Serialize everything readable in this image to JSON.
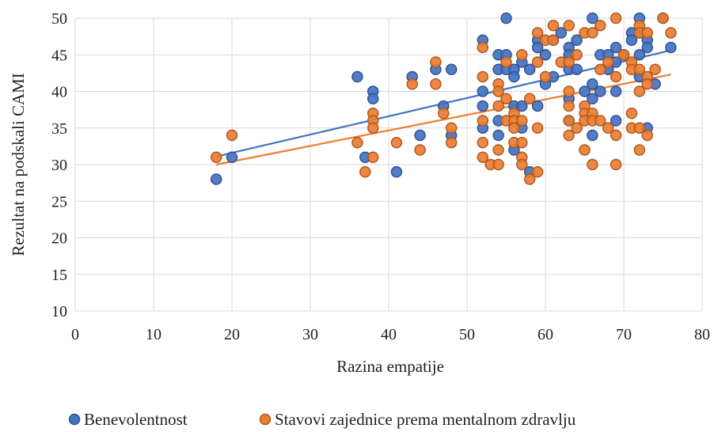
{
  "chart_data": {
    "type": "scatter",
    "xlabel": "Razina empatije",
    "ylabel": "Rezultat na podskali CAMI",
    "xlim": [
      0,
      80
    ],
    "ylim": [
      10,
      50
    ],
    "xticks": [
      0,
      10,
      20,
      30,
      40,
      50,
      60,
      70,
      80
    ],
    "yticks": [
      10,
      15,
      20,
      25,
      30,
      35,
      40,
      45,
      50
    ],
    "grid": true,
    "legend_position": "bottom",
    "series": [
      {
        "name": "Benevolentnost",
        "color": "#4472C4",
        "points": [
          [
            18,
            28
          ],
          [
            20,
            31
          ],
          [
            36,
            42
          ],
          [
            37,
            31
          ],
          [
            38,
            40
          ],
          [
            38,
            39
          ],
          [
            41,
            29
          ],
          [
            43,
            42
          ],
          [
            44,
            34
          ],
          [
            46,
            43
          ],
          [
            47,
            38
          ],
          [
            48,
            43
          ],
          [
            48,
            34
          ],
          [
            52,
            47
          ],
          [
            52,
            40
          ],
          [
            52,
            38
          ],
          [
            52,
            35
          ],
          [
            54,
            45
          ],
          [
            54,
            43
          ],
          [
            54,
            36
          ],
          [
            54,
            34
          ],
          [
            55,
            50
          ],
          [
            55,
            45
          ],
          [
            55,
            43
          ],
          [
            56,
            43
          ],
          [
            56,
            42
          ],
          [
            56,
            38
          ],
          [
            56,
            32
          ],
          [
            57,
            44
          ],
          [
            57,
            38
          ],
          [
            57,
            35
          ],
          [
            58,
            43
          ],
          [
            58,
            29
          ],
          [
            59,
            47
          ],
          [
            59,
            46
          ],
          [
            59,
            38
          ],
          [
            60,
            45
          ],
          [
            60,
            41
          ],
          [
            61,
            47
          ],
          [
            61,
            42
          ],
          [
            62,
            48
          ],
          [
            63,
            46
          ],
          [
            63,
            45
          ],
          [
            63,
            43
          ],
          [
            63,
            39
          ],
          [
            63,
            36
          ],
          [
            64,
            47
          ],
          [
            64,
            43
          ],
          [
            65,
            40
          ],
          [
            66,
            50
          ],
          [
            66,
            41
          ],
          [
            66,
            39
          ],
          [
            66,
            34
          ],
          [
            67,
            45
          ],
          [
            67,
            40
          ],
          [
            68,
            45
          ],
          [
            68,
            43
          ],
          [
            69,
            46
          ],
          [
            69,
            44
          ],
          [
            69,
            40
          ],
          [
            69,
            36
          ],
          [
            70,
            45
          ],
          [
            71,
            48
          ],
          [
            71,
            47
          ],
          [
            72,
            50
          ],
          [
            72,
            48
          ],
          [
            72,
            45
          ],
          [
            72,
            42
          ],
          [
            73,
            47
          ],
          [
            73,
            46
          ],
          [
            73,
            35
          ],
          [
            74,
            41
          ],
          [
            75,
            50
          ],
          [
            76,
            46
          ]
        ]
      },
      {
        "name": "Stavovi zajednice prema mentalnom zdravlju",
        "color": "#ED7D31",
        "points": [
          [
            18,
            31
          ],
          [
            20,
            34
          ],
          [
            36,
            33
          ],
          [
            37,
            29
          ],
          [
            38,
            37
          ],
          [
            38,
            36
          ],
          [
            38,
            35
          ],
          [
            38,
            31
          ],
          [
            41,
            33
          ],
          [
            43,
            41
          ],
          [
            44,
            32
          ],
          [
            46,
            44
          ],
          [
            46,
            41
          ],
          [
            47,
            37
          ],
          [
            48,
            35
          ],
          [
            48,
            33
          ],
          [
            52,
            46
          ],
          [
            52,
            42
          ],
          [
            52,
            36
          ],
          [
            52,
            33
          ],
          [
            52,
            31
          ],
          [
            53,
            30
          ],
          [
            54,
            41
          ],
          [
            54,
            40
          ],
          [
            54,
            38
          ],
          [
            54,
            32
          ],
          [
            54,
            30
          ],
          [
            55,
            44
          ],
          [
            55,
            39
          ],
          [
            55,
            36
          ],
          [
            56,
            37
          ],
          [
            56,
            36
          ],
          [
            56,
            35
          ],
          [
            56,
            33
          ],
          [
            57,
            45
          ],
          [
            57,
            36
          ],
          [
            57,
            33
          ],
          [
            57,
            31
          ],
          [
            57,
            30
          ],
          [
            58,
            28
          ],
          [
            58,
            39
          ],
          [
            59,
            48
          ],
          [
            59,
            44
          ],
          [
            59,
            35
          ],
          [
            59,
            29
          ],
          [
            60,
            47
          ],
          [
            60,
            42
          ],
          [
            61,
            49
          ],
          [
            61,
            47
          ],
          [
            62,
            44
          ],
          [
            63,
            49
          ],
          [
            63,
            44
          ],
          [
            63,
            40
          ],
          [
            63,
            38
          ],
          [
            63,
            36
          ],
          [
            63,
            34
          ],
          [
            64,
            45
          ],
          [
            64,
            35
          ],
          [
            65,
            48
          ],
          [
            65,
            38
          ],
          [
            65,
            37
          ],
          [
            65,
            36
          ],
          [
            65,
            32
          ],
          [
            66,
            48
          ],
          [
            66,
            37
          ],
          [
            66,
            36
          ],
          [
            66,
            30
          ],
          [
            67,
            49
          ],
          [
            67,
            43
          ],
          [
            67,
            36
          ],
          [
            68,
            44
          ],
          [
            68,
            35
          ],
          [
            69,
            50
          ],
          [
            69,
            42
          ],
          [
            69,
            34
          ],
          [
            69,
            30
          ],
          [
            70,
            45
          ],
          [
            71,
            44
          ],
          [
            71,
            43
          ],
          [
            71,
            37
          ],
          [
            71,
            35
          ],
          [
            72,
            49
          ],
          [
            72,
            48
          ],
          [
            72,
            43
          ],
          [
            72,
            40
          ],
          [
            72,
            35
          ],
          [
            72,
            32
          ],
          [
            73,
            48
          ],
          [
            73,
            42
          ],
          [
            73,
            41
          ],
          [
            73,
            34
          ],
          [
            74,
            43
          ],
          [
            75,
            50
          ],
          [
            76,
            48
          ]
        ]
      }
    ],
    "trendlines": [
      {
        "series": "Benevolentnost",
        "color": "#4472C4",
        "from": [
          18,
          31.1
        ],
        "to": [
          76,
          45.6
        ]
      },
      {
        "series": "Stavovi zajednice prema mentalnom zdravlju",
        "color": "#ED7D31",
        "from": [
          18,
          30.0
        ],
        "to": [
          76,
          42.3
        ]
      }
    ]
  }
}
